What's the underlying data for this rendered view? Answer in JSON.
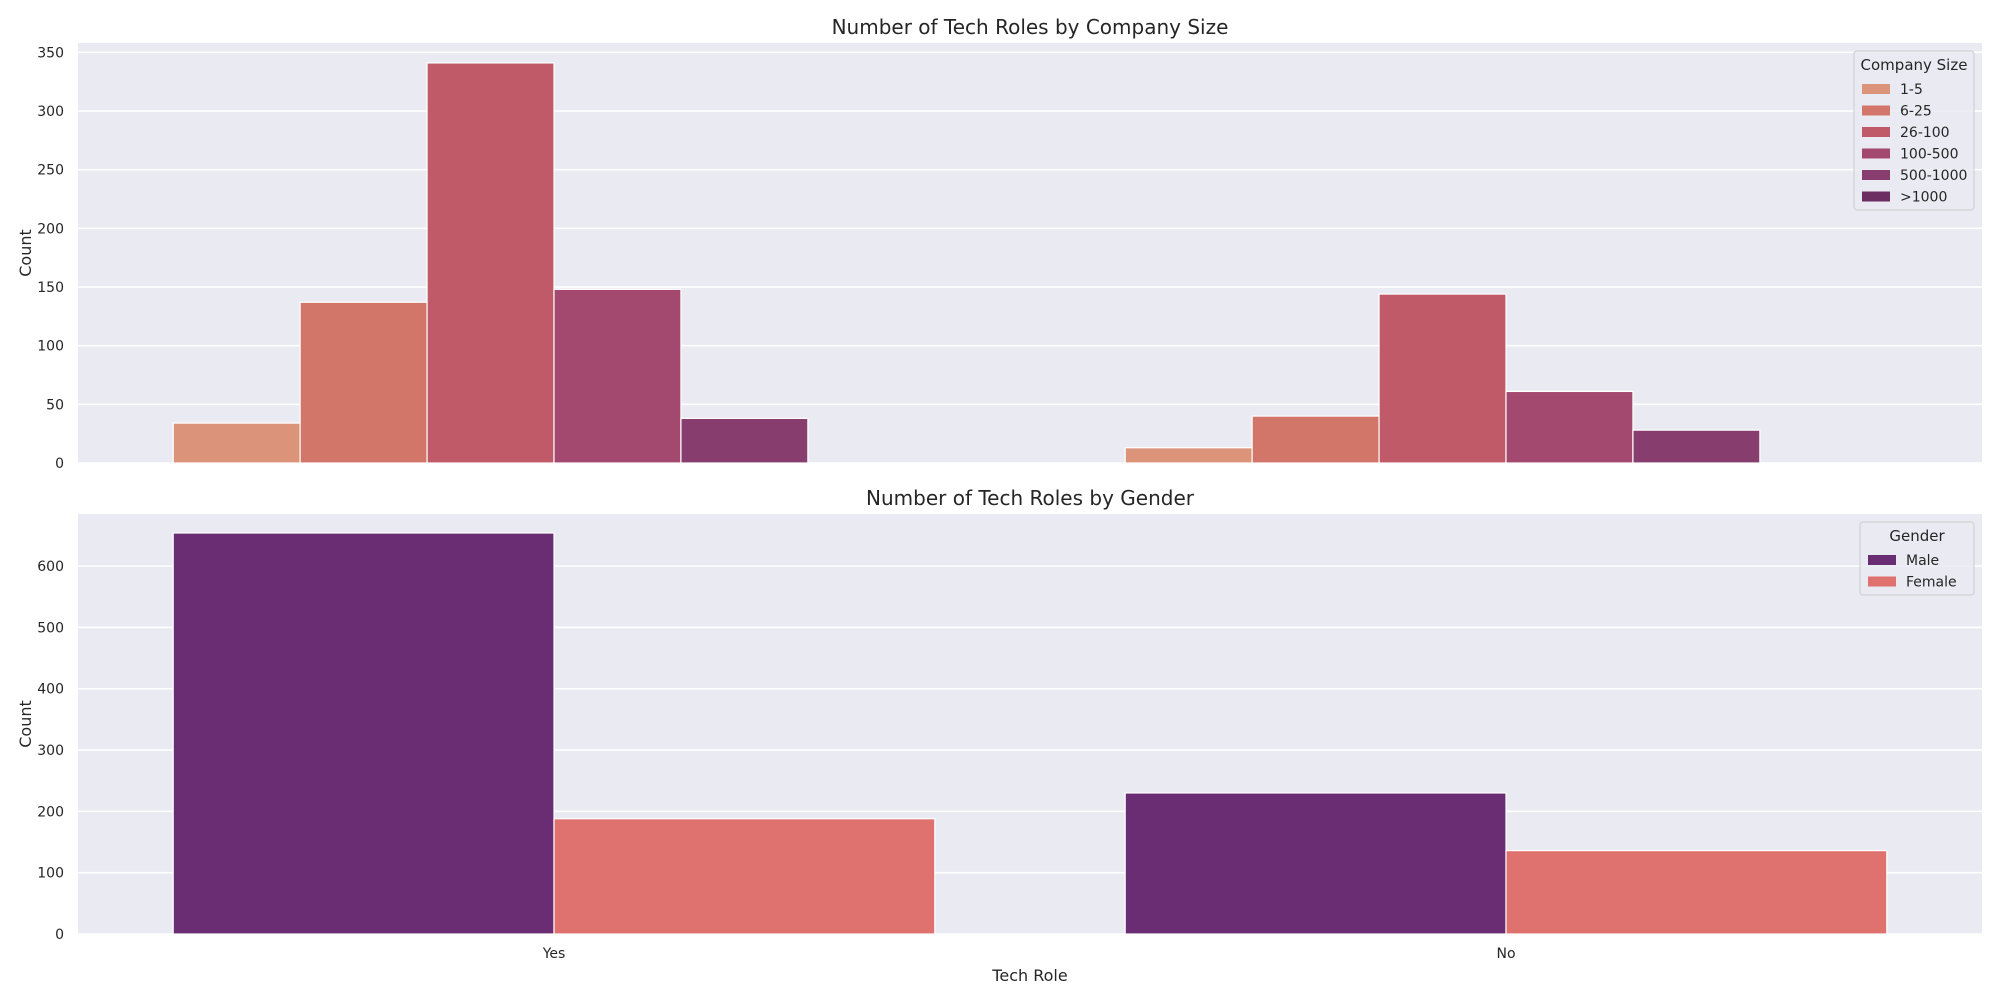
{
  "chart_data": [
    {
      "type": "bar",
      "title": "Number of Tech Roles by Company Size",
      "xlabel": "",
      "ylabel": "Count",
      "categories": [
        "Yes",
        "No"
      ],
      "show_xticklabels": false,
      "ylim": [
        0,
        358
      ],
      "yticks": [
        0,
        50,
        100,
        150,
        200,
        250,
        300,
        350
      ],
      "grid": true,
      "legend_title": "Company Size",
      "legend_position": "top-right",
      "series": [
        {
          "name": "1-5",
          "color": "#db9379",
          "values": [
            34,
            13
          ]
        },
        {
          "name": "6-25",
          "color": "#d2766a",
          "values": [
            137,
            40
          ]
        },
        {
          "name": "26-100",
          "color": "#c05a69",
          "values": [
            341,
            144
          ]
        },
        {
          "name": "100-500",
          "color": "#a3486e",
          "values": [
            148,
            61
          ]
        },
        {
          "name": "500-1000",
          "color": "#873d6d",
          "values": [
            38,
            28
          ]
        },
        {
          "name": ">1000",
          "color": "#6b2d62",
          "values": [
            0,
            0
          ]
        }
      ]
    },
    {
      "type": "bar",
      "title": "Number of Tech Roles by Gender",
      "xlabel": "Tech Role",
      "ylabel": "Count",
      "categories": [
        "Yes",
        "No"
      ],
      "show_xticklabels": true,
      "ylim": [
        0,
        685
      ],
      "yticks": [
        0,
        100,
        200,
        300,
        400,
        500,
        600
      ],
      "grid": true,
      "legend_title": "Gender",
      "legend_position": "top-right",
      "series": [
        {
          "name": "Male",
          "color": "#6a2c72",
          "values": [
            654,
            230
          ]
        },
        {
          "name": "Female",
          "color": "#df716e",
          "values": [
            188,
            136
          ]
        }
      ]
    }
  ]
}
